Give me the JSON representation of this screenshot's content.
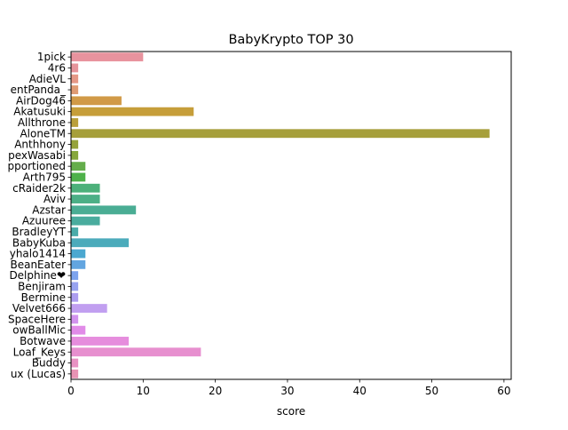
{
  "chart_data": {
    "type": "bar",
    "orientation": "horizontal",
    "title": "BabyKrypto TOP 30",
    "xlabel": "score",
    "ylabel": "",
    "xlim": [
      0,
      61
    ],
    "xticks": [
      0,
      10,
      20,
      30,
      40,
      50,
      60
    ],
    "grid": false,
    "categories": [
      "1pick",
      "4r6",
      "AdieVL",
      "entPanda_",
      "AirDog46",
      "Akatusuki",
      "Allthrone",
      "AloneTM",
      "Anthhony",
      "pexWasabi",
      "pportioned",
      "Arth795",
      "cRaider2k",
      "Aviv",
      "Azstar",
      "Azuuree",
      "BradleyYT",
      "BabyKuba",
      "yhalo1414",
      "BeanEater",
      "Delphine❤",
      "Benjiram",
      "Bermine",
      "Velvet666",
      "SpaceHere",
      "owBallMic",
      "Botwave",
      "Loaf_Keys",
      "Buddy",
      "ux (Lucas)"
    ],
    "values": [
      10,
      1,
      1,
      1,
      7,
      17,
      1,
      58,
      1,
      1,
      2,
      2,
      4,
      4,
      9,
      4,
      1,
      8,
      2,
      2,
      1,
      1,
      1,
      5,
      1,
      2,
      8,
      18,
      1,
      1
    ],
    "colors": [
      "#e8939e",
      "#e6949a",
      "#e59886",
      "#df9b73",
      "#d19a47",
      "#c69e3a",
      "#ba9f3a",
      "#a69f3b",
      "#96a33b",
      "#86a73b",
      "#64ad4b",
      "#4eb14a",
      "#4cb07a",
      "#4caf86",
      "#4aad94",
      "#4aac9e",
      "#4aacaa",
      "#4babbb",
      "#4ba8d0",
      "#62a5e0",
      "#7da3ed",
      "#98a3f0",
      "#ac9df0",
      "#c19ff0",
      "#d293ee",
      "#e18be8",
      "#e68ddd",
      "#e78fcf",
      "#e891c3",
      "#e893b4"
    ]
  }
}
